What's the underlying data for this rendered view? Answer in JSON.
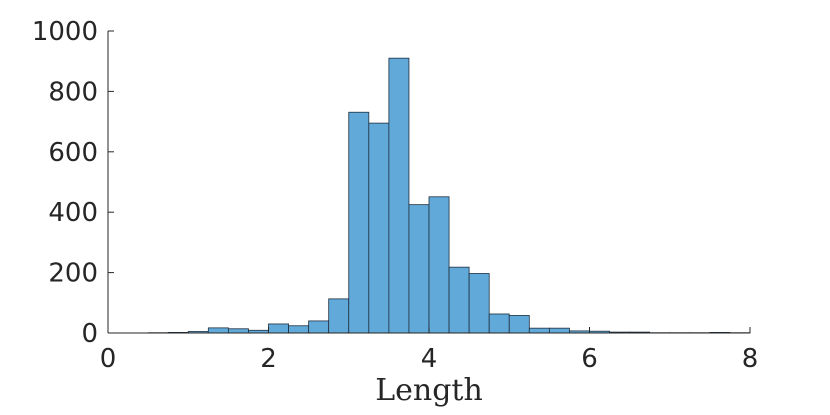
{
  "chart_data": {
    "type": "bar",
    "subtype": "histogram",
    "title": "",
    "xlabel": "Length",
    "ylabel": "",
    "xlim": [
      0,
      8
    ],
    "ylim": [
      0,
      1000
    ],
    "xticks": [
      0,
      2,
      4,
      6,
      8
    ],
    "yticks": [
      0,
      200,
      400,
      600,
      800,
      1000
    ],
    "bin_width": 0.25,
    "bin_start": 0.5,
    "values": [
      1,
      2,
      5,
      17,
      14,
      9,
      30,
      24,
      40,
      113,
      731,
      695,
      910,
      425,
      451,
      218,
      197,
      63,
      58,
      16,
      16,
      7,
      6,
      3,
      3,
      1,
      1,
      1,
      2,
      1
    ],
    "grid": false,
    "legend": "none",
    "bar_color": "#61a9d9",
    "edge_color": "#1f2f3f"
  }
}
